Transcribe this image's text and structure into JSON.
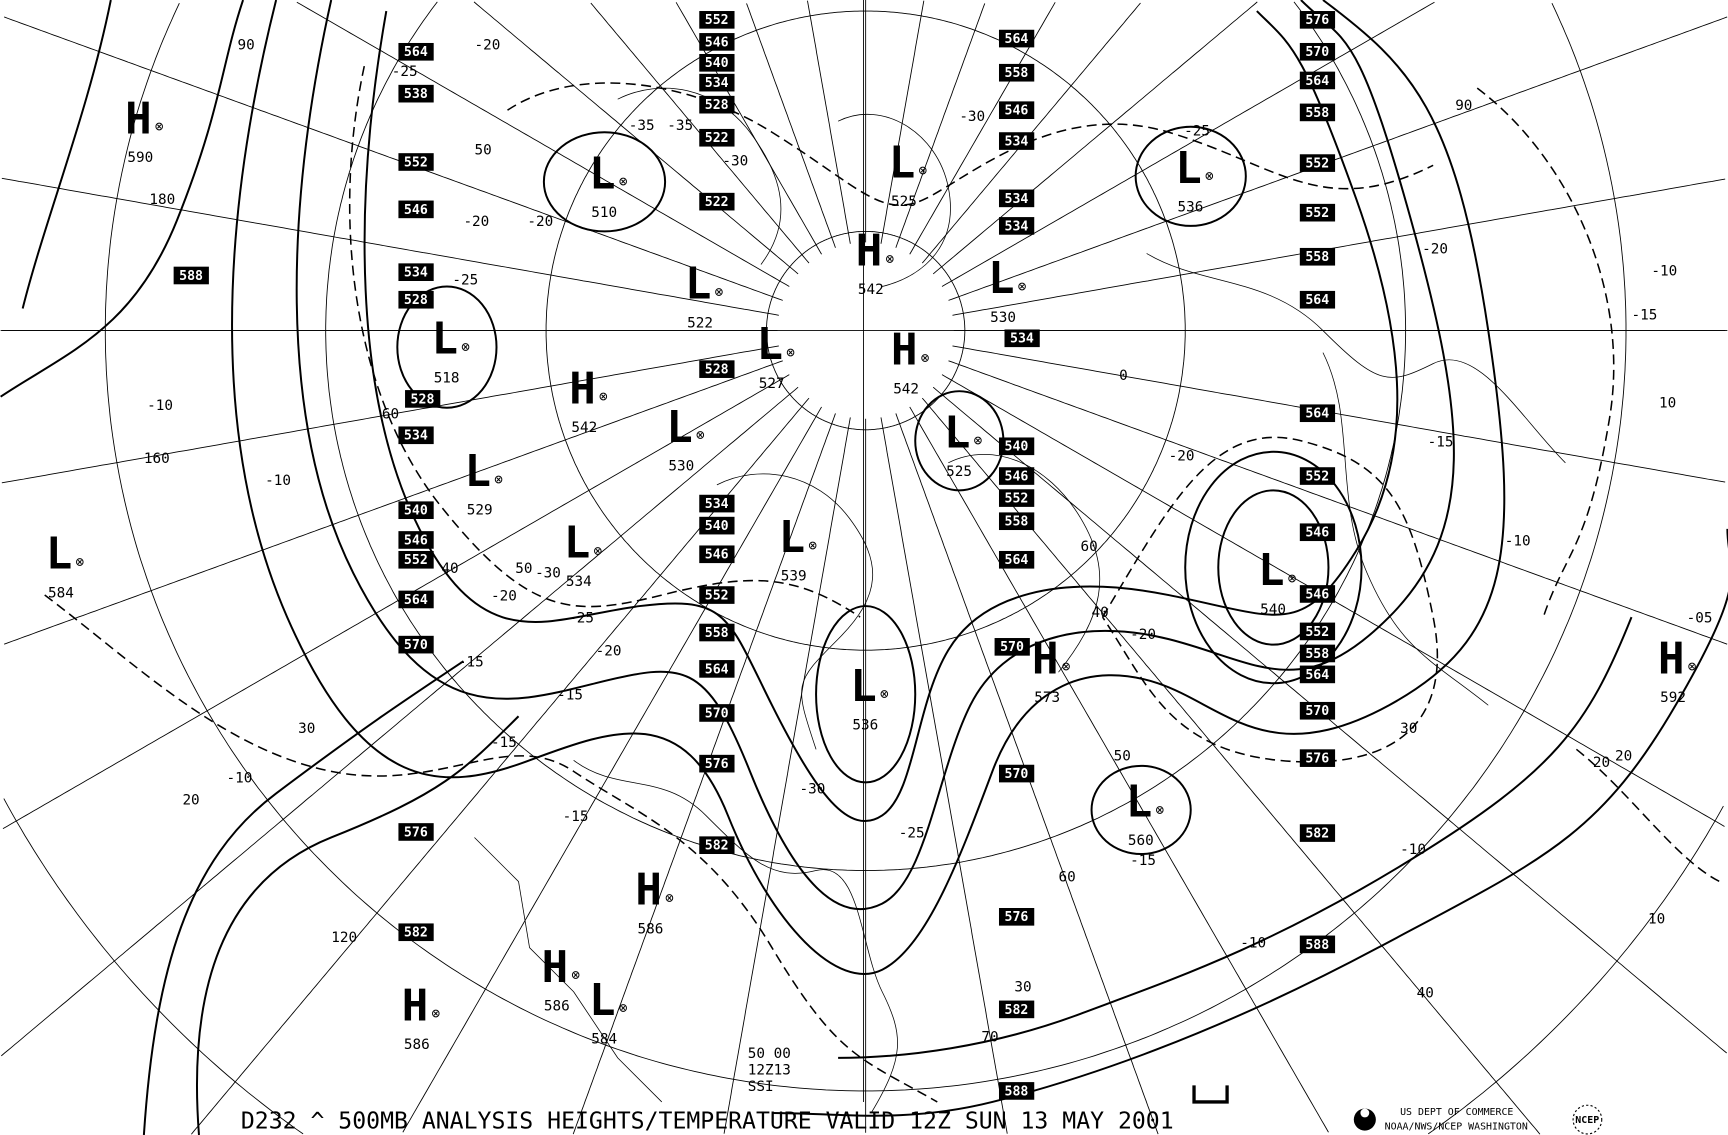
{
  "title": "D232 ^ 500MB ANALYSIS HEIGHTS/TEMPERATURE VALID 12Z SUN 13 MAY 2001",
  "agency_line1": "US DEPT OF COMMERCE",
  "agency_line2": "NOAA/NWS/NCEP WASHINGTON",
  "ncep_logo": "NCEP",
  "station_block": [
    "50 00",
    "12Z13",
    "SSI"
  ],
  "pressure_centers": [
    {
      "type": "H",
      "value": "590"
    },
    {
      "type": "L",
      "value": "510"
    },
    {
      "type": "L",
      "value": "525"
    },
    {
      "type": "L",
      "value": "536"
    },
    {
      "type": "H",
      "value": "542"
    },
    {
      "type": "L",
      "value": "530"
    },
    {
      "type": "L",
      "value": "522"
    },
    {
      "type": "L",
      "value": "518"
    },
    {
      "type": "L",
      "value": "527"
    },
    {
      "type": "H",
      "value": "542"
    },
    {
      "type": "H",
      "value": "542"
    },
    {
      "type": "L",
      "value": "530"
    },
    {
      "type": "L",
      "value": "525"
    },
    {
      "type": "L",
      "value": "529"
    },
    {
      "type": "L",
      "value": "534"
    },
    {
      "type": "L",
      "value": "539"
    },
    {
      "type": "L",
      "value": "584"
    },
    {
      "type": "L",
      "value": "540"
    },
    {
      "type": "H",
      "value": "573"
    },
    {
      "type": "H",
      "value": "592"
    },
    {
      "type": "L",
      "value": "536"
    },
    {
      "type": "L",
      "value": "560"
    },
    {
      "type": "H",
      "value": "586"
    },
    {
      "type": "H",
      "value": "586"
    },
    {
      "type": "L",
      "value": "584"
    },
    {
      "type": "H",
      "value": "586"
    }
  ],
  "height_labels": [
    "564",
    "538",
    "552",
    "546",
    "534",
    "528",
    "528",
    "534",
    "540",
    "546",
    "552",
    "564",
    "570",
    "576",
    "582",
    "552",
    "546",
    "540",
    "534",
    "528",
    "522",
    "522",
    "528",
    "534",
    "540",
    "546",
    "552",
    "558",
    "564",
    "570",
    "576",
    "582",
    "564",
    "558",
    "546",
    "534",
    "534",
    "534",
    "534",
    "540",
    "546",
    "552",
    "558",
    "564",
    "570",
    "570",
    "576",
    "582",
    "588",
    "576",
    "570",
    "564",
    "558",
    "552",
    "552",
    "558",
    "564",
    "564",
    "552",
    "546",
    "546",
    "552",
    "558",
    "564",
    "570",
    "576",
    "582",
    "588",
    "588"
  ],
  "temperature_labels": [
    "-20",
    "-25",
    "-30",
    "-35",
    "-20",
    "-25",
    "-10",
    "-15",
    "-10",
    "-20",
    "-25",
    "-30",
    "-15",
    "-20",
    "-25",
    "-30",
    "-20",
    "-15",
    "-10",
    "-15",
    "-20",
    "-10",
    "-10",
    "-15",
    "-20",
    "-05",
    "-10",
    "-10",
    "-15",
    "-25",
    "-30",
    "-35",
    "-20",
    "-15"
  ],
  "wind_labels": [
    "90",
    "180",
    "160",
    "50",
    "60",
    "40",
    "30",
    "20",
    "120",
    "60",
    "50",
    "40",
    "30",
    "20",
    "10",
    "70",
    "40",
    "0",
    "30",
    "50",
    "60",
    "90",
    "10",
    "20"
  ],
  "marker_glyph": "⊗"
}
